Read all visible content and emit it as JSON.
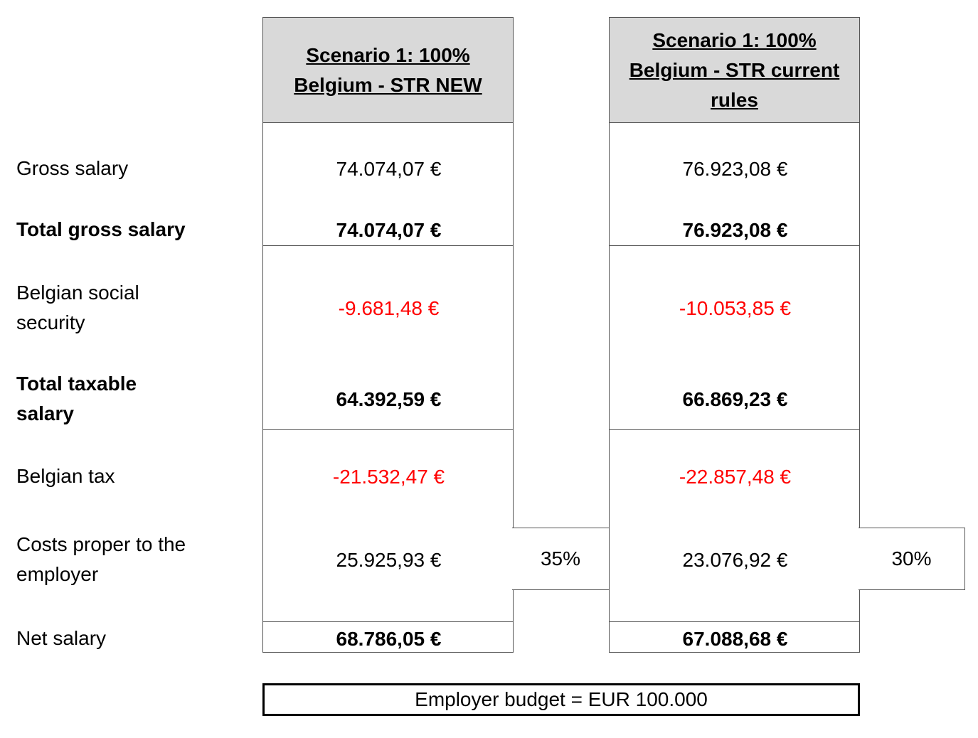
{
  "rows": {
    "gross_salary": "Gross salary",
    "total_gross_salary": "Total gross salary",
    "belgian_social_security": "Belgian social security",
    "total_taxable_salary": "Total taxable salary",
    "belgian_tax": "Belgian tax",
    "costs_proper": "Costs proper to the employer",
    "net_salary": "Net salary"
  },
  "scenarios": [
    {
      "title": "Scenario 1: 100% Belgium - STR NEW",
      "gross_salary": "74.074,07 €",
      "total_gross_salary": "74.074,07 €",
      "belgian_social_security": "-9.681,48 €",
      "total_taxable_salary": "64.392,59 €",
      "belgian_tax": "-21.532,47 €",
      "costs_proper": "25.925,93 €",
      "costs_pct": "35%",
      "net_salary": "68.786,05 €"
    },
    {
      "title": "Scenario 1: 100% Belgium - STR current rules",
      "gross_salary": "76.923,08 €",
      "total_gross_salary": "76.923,08 €",
      "belgian_social_security": "-10.053,85 €",
      "total_taxable_salary": "66.869,23 €",
      "belgian_tax": "-22.857,48 €",
      "costs_proper": "23.076,92 €",
      "costs_pct": "30%",
      "net_salary": "67.088,68 €"
    }
  ],
  "footer": {
    "budget": "Employer budget = EUR 100.000"
  },
  "colors": {
    "negative": "#ff0000",
    "header_bg": "#d9d9d9"
  }
}
